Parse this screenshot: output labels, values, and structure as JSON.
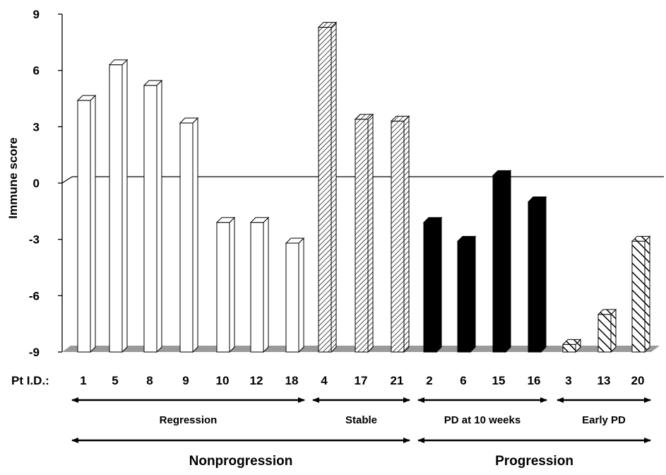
{
  "chart_data": {
    "type": "bar",
    "ylabel": "Immune score",
    "ylim": [
      -9,
      9
    ],
    "yticks": [
      9,
      6,
      3,
      0,
      -3,
      -6,
      -9
    ],
    "x_prefix": "Pt I.D.:",
    "categories": [
      "1",
      "5",
      "8",
      "9",
      "10",
      "12",
      "18",
      "4",
      "17",
      "21",
      "2",
      "6",
      "15",
      "16",
      "3",
      "13",
      "20"
    ],
    "values": [
      4.4,
      6.3,
      5.2,
      3.2,
      -2.1,
      -2.1,
      -3.2,
      8.3,
      3.4,
      3.3,
      -2.1,
      -3.1,
      0.4,
      -1.0,
      -8.6,
      -7.0,
      -3.1
    ],
    "bar_styles": [
      "white",
      "white",
      "white",
      "white",
      "white",
      "white",
      "white",
      "hatch-fine",
      "hatch-fine",
      "hatch-fine",
      "black",
      "black",
      "black",
      "black",
      "hatch-coarse",
      "hatch-coarse",
      "hatch-coarse"
    ],
    "groups": [
      {
        "label": "Regression",
        "start": 0,
        "end": 6
      },
      {
        "label": "Stable",
        "start": 7,
        "end": 9
      },
      {
        "label": "PD at 10 weeks",
        "start": 10,
        "end": 13
      },
      {
        "label": "Early PD",
        "start": 14,
        "end": 16
      }
    ],
    "supergroups": [
      {
        "label": "Nonprogression",
        "start": 0,
        "end": 9
      },
      {
        "label": "Progression",
        "start": 10,
        "end": 16
      }
    ],
    "colors": {
      "white_bar": "#ffffff",
      "black_bar": "#000000",
      "floor": "#9a9a9a",
      "outline": "#000000"
    }
  }
}
